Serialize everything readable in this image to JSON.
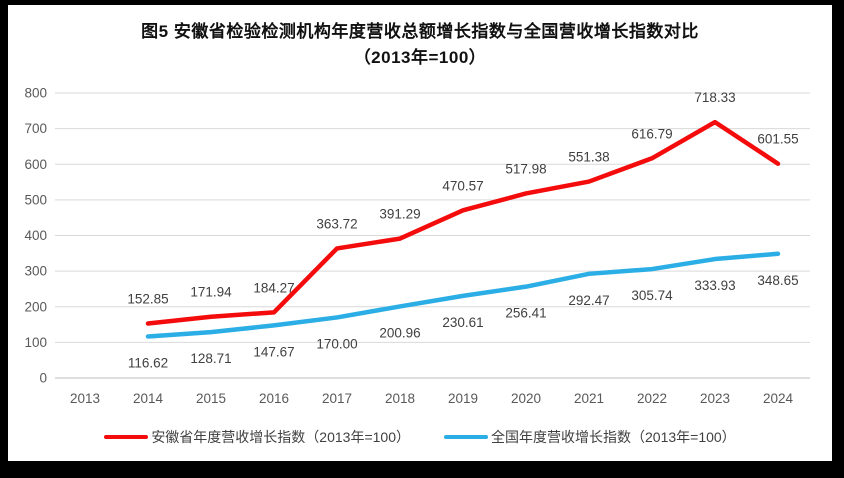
{
  "title": {
    "line1": "图5  安徽省检验检测机构年度营收总额增长指数与全国营收增长指数对比",
    "line2": "（2013年=100）"
  },
  "chart_data": {
    "type": "line",
    "categories": [
      "2013",
      "2014",
      "2015",
      "2016",
      "2017",
      "2018",
      "2019",
      "2020",
      "2021",
      "2022",
      "2023",
      "2024"
    ],
    "series": [
      {
        "name": "安徽省年度营收增长指数（2013年=100）",
        "color": "#f40b0b",
        "values": [
          null,
          152.85,
          171.94,
          184.27,
          363.72,
          391.29,
          470.57,
          517.98,
          551.38,
          616.79,
          718.33,
          601.55
        ]
      },
      {
        "name": "全国年度营收增长指数（2013年=100）",
        "color": "#2aaee5",
        "values": [
          null,
          116.62,
          128.71,
          147.67,
          170.0,
          200.96,
          230.61,
          256.41,
          292.47,
          305.74,
          333.93,
          348.65
        ]
      }
    ],
    "ylim": [
      0,
      800
    ],
    "ytick_step": 100,
    "grid": true,
    "legend_position": "bottom",
    "grid_color": "#d9d9d9",
    "axis_line_color": "#bfbfbf",
    "axis_text_color": "#595959",
    "data_label_color": "#404040",
    "data_label_decimals": 2
  }
}
